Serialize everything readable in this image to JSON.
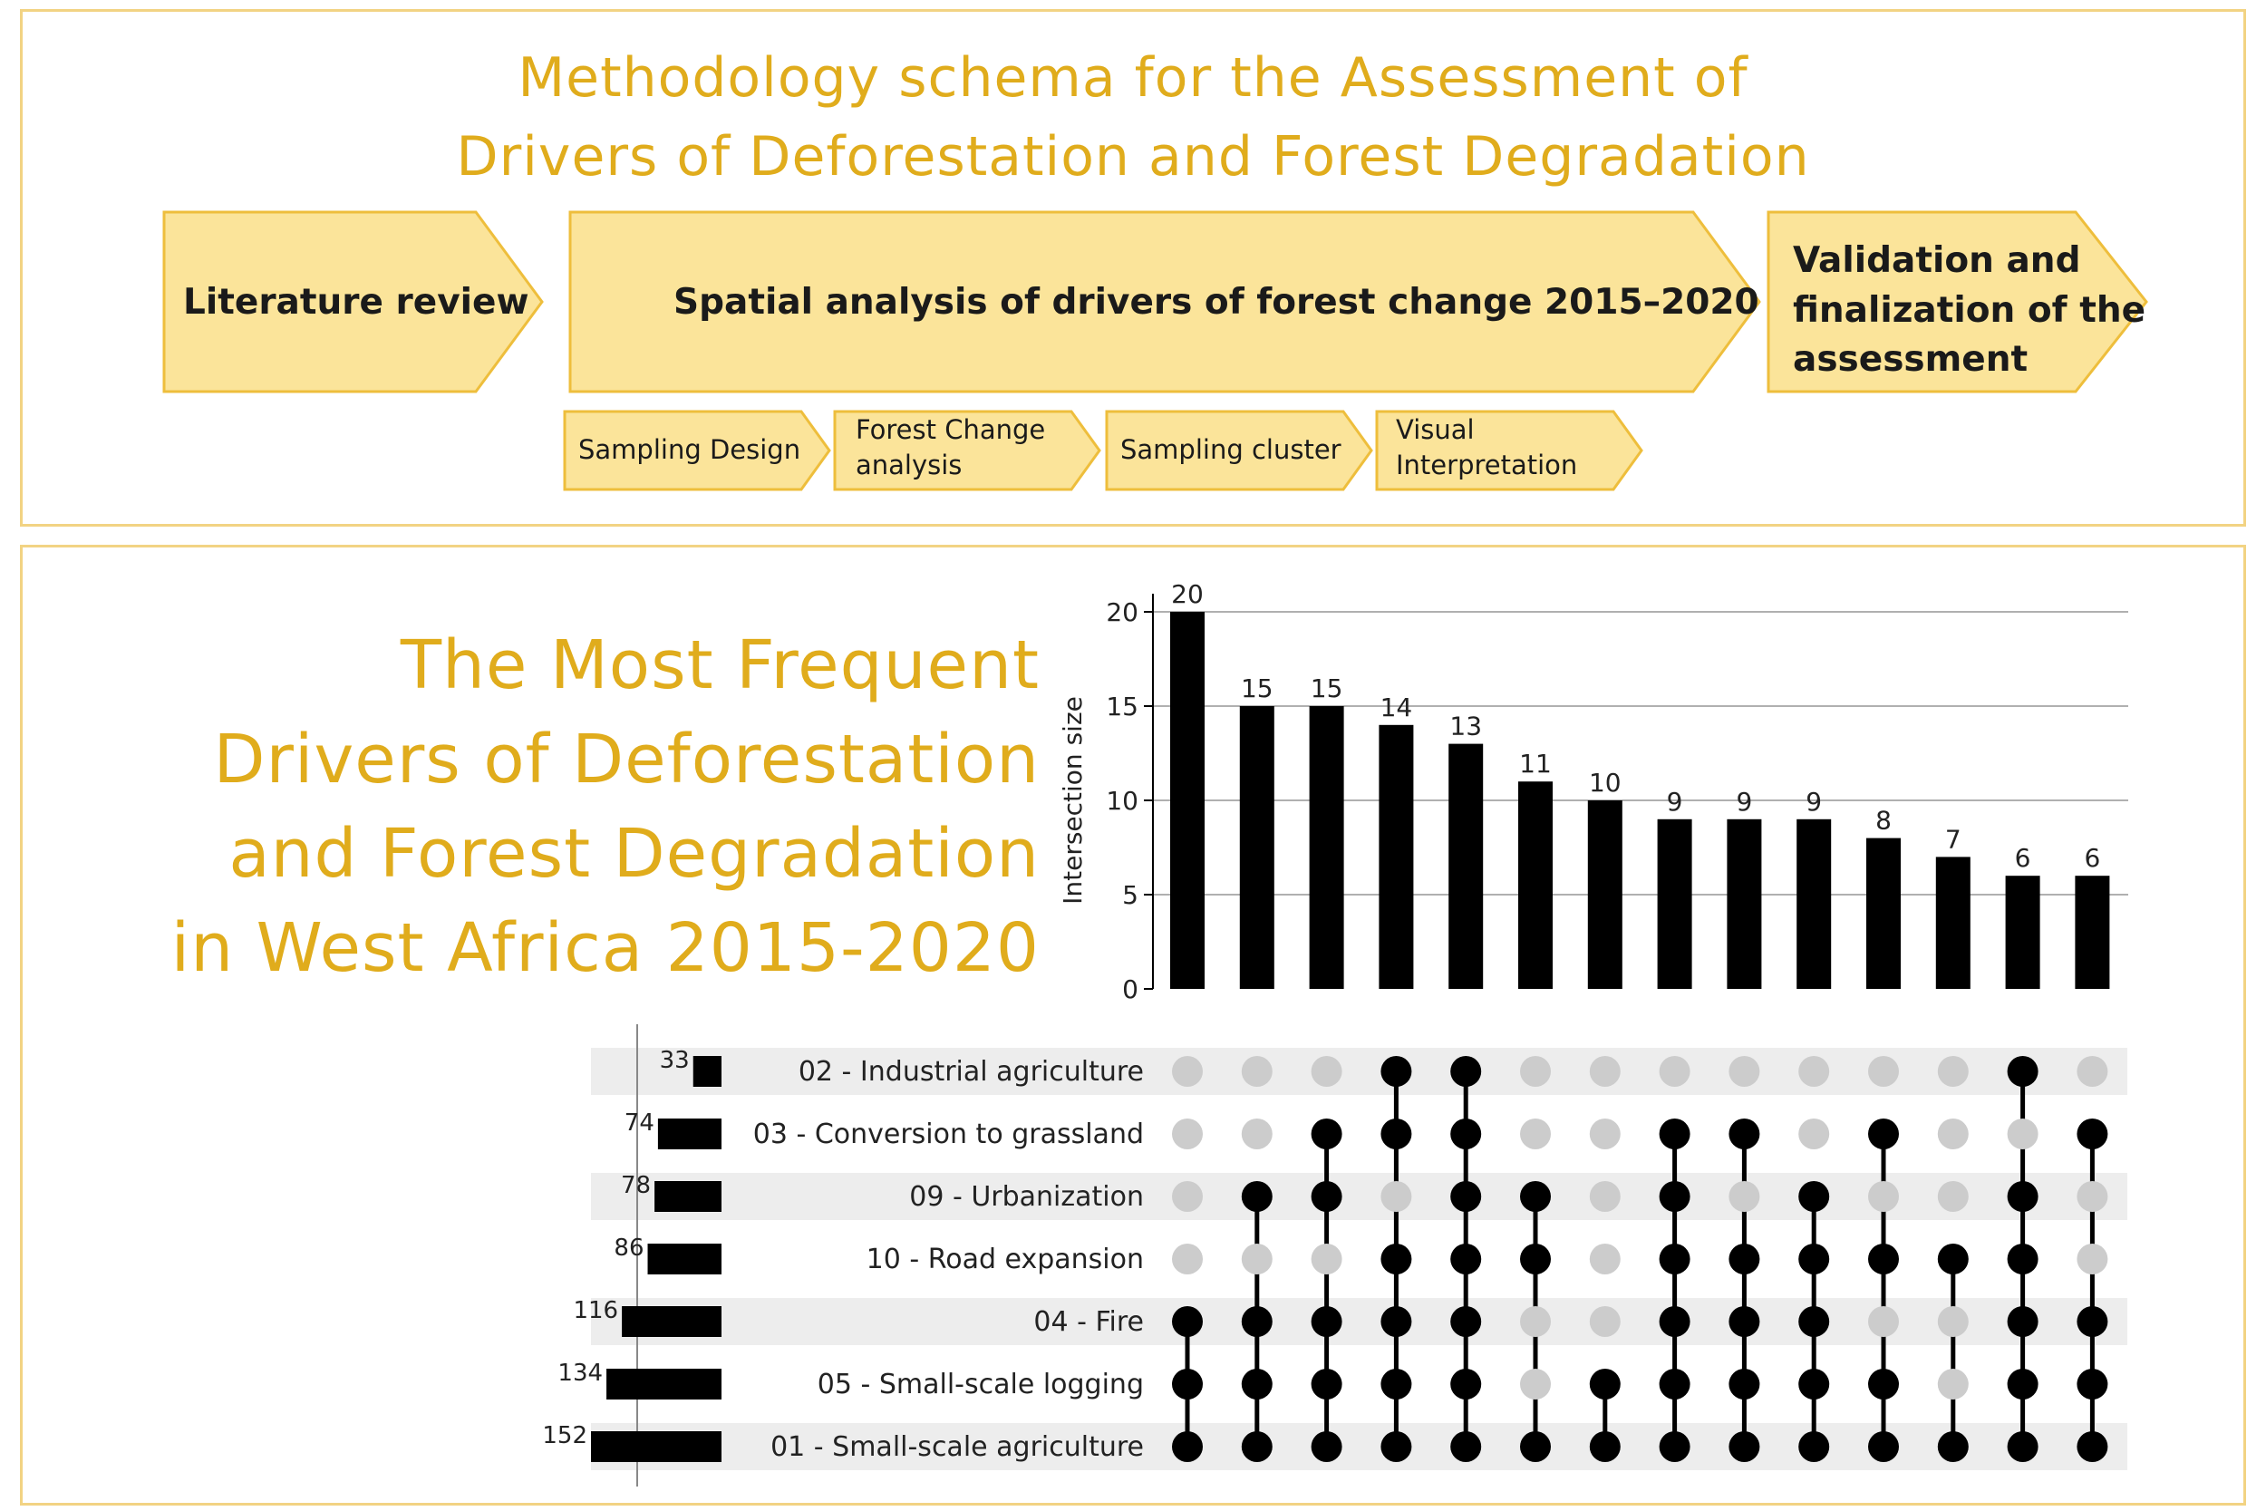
{
  "methodology": {
    "title_line1": "Methodology schema for the Assessment of",
    "title_line2": "Drivers of Deforestation and Forest Degradation",
    "steps": [
      {
        "label": "Literature review"
      },
      {
        "label": "Spatial analysis of drivers of forest change 2015–2020"
      },
      {
        "label_lines": [
          "Validation and",
          "finalization of the",
          "assessment"
        ]
      }
    ],
    "substeps": [
      {
        "label_lines": [
          "Sampling Design"
        ]
      },
      {
        "label_lines": [
          "Forest Change",
          "analysis"
        ]
      },
      {
        "label_lines": [
          "Sampling cluster"
        ]
      },
      {
        "label_lines": [
          "Visual",
          "Interpretation"
        ]
      }
    ],
    "colors": {
      "arrow_fill": "#fbe49a",
      "arrow_stroke": "#eebe3c",
      "title": "#e0ac1c"
    }
  },
  "upset": {
    "title_lines": [
      "The Most Frequent",
      "Drivers of Deforestation",
      "and Forest Degradation",
      "in West Africa 2015-2020"
    ]
  },
  "chart_data": {
    "type": "bar",
    "ylabel": "Intersection size",
    "ylim": [
      0,
      20
    ],
    "yticks": [
      0,
      5,
      10,
      15,
      20
    ],
    "grid": true,
    "intersection_sizes": [
      20,
      15,
      15,
      14,
      13,
      11,
      10,
      9,
      9,
      9,
      8,
      7,
      6,
      6
    ],
    "sets": [
      {
        "name": "02 - Industrial agriculture",
        "size": 33
      },
      {
        "name": "03 - Conversion to grassland",
        "size": 74
      },
      {
        "name": "09 - Urbanization",
        "size": 78
      },
      {
        "name": "10 - Road expansion",
        "size": 86
      },
      {
        "name": "04 - Fire",
        "size": 116
      },
      {
        "name": "05 - Small-scale logging",
        "size": 134
      },
      {
        "name": "01 - Small-scale agriculture",
        "size": 152
      }
    ],
    "membership": [
      [
        0,
        0,
        0,
        1,
        1,
        0,
        0,
        0,
        0,
        0,
        0,
        0,
        1,
        0
      ],
      [
        0,
        0,
        1,
        1,
        1,
        0,
        0,
        1,
        1,
        0,
        1,
        0,
        0,
        1
      ],
      [
        0,
        1,
        1,
        0,
        1,
        1,
        0,
        1,
        0,
        1,
        0,
        0,
        1,
        0
      ],
      [
        0,
        0,
        0,
        1,
        1,
        1,
        0,
        1,
        1,
        1,
        1,
        1,
        1,
        0
      ],
      [
        1,
        1,
        1,
        1,
        1,
        0,
        0,
        1,
        1,
        1,
        0,
        0,
        1,
        1
      ],
      [
        1,
        1,
        1,
        1,
        1,
        0,
        1,
        1,
        1,
        1,
        1,
        0,
        1,
        1
      ],
      [
        1,
        1,
        1,
        1,
        1,
        1,
        1,
        1,
        1,
        1,
        1,
        1,
        1,
        1
      ]
    ],
    "colors": {
      "bar": "#000000",
      "dot_on": "#000000",
      "dot_off": "#cccccc",
      "stripe": "#ededed",
      "grid": "#b0b0b0"
    }
  }
}
